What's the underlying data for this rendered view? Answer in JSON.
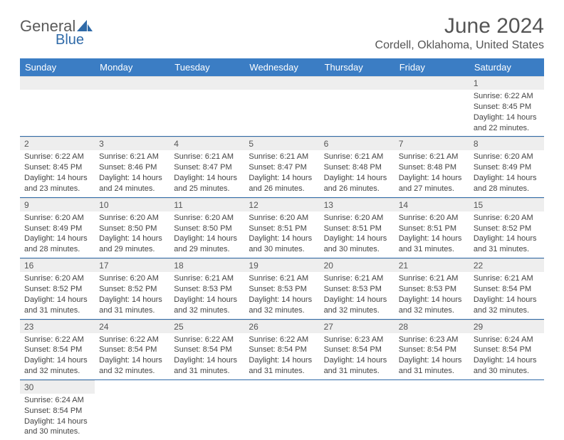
{
  "brand": {
    "name_part1": "General",
    "name_part2": "Blue",
    "text_color": "#5a5a5a",
    "accent_color": "#2f6aa8"
  },
  "title": "June 2024",
  "location": "Cordell, Oklahoma, United States",
  "header_bg": "#3b7dc4",
  "header_text_color": "#ffffff",
  "daynum_bg": "#eeeeee",
  "cell_border_color": "#2f6aa8",
  "weekdays": [
    "Sunday",
    "Monday",
    "Tuesday",
    "Wednesday",
    "Thursday",
    "Friday",
    "Saturday"
  ],
  "weeks": [
    [
      {
        "day": "",
        "lines": []
      },
      {
        "day": "",
        "lines": []
      },
      {
        "day": "",
        "lines": []
      },
      {
        "day": "",
        "lines": []
      },
      {
        "day": "",
        "lines": []
      },
      {
        "day": "",
        "lines": []
      },
      {
        "day": "1",
        "lines": [
          "Sunrise: 6:22 AM",
          "Sunset: 8:45 PM",
          "Daylight: 14 hours",
          "and 22 minutes."
        ]
      }
    ],
    [
      {
        "day": "2",
        "lines": [
          "Sunrise: 6:22 AM",
          "Sunset: 8:45 PM",
          "Daylight: 14 hours",
          "and 23 minutes."
        ]
      },
      {
        "day": "3",
        "lines": [
          "Sunrise: 6:21 AM",
          "Sunset: 8:46 PM",
          "Daylight: 14 hours",
          "and 24 minutes."
        ]
      },
      {
        "day": "4",
        "lines": [
          "Sunrise: 6:21 AM",
          "Sunset: 8:47 PM",
          "Daylight: 14 hours",
          "and 25 minutes."
        ]
      },
      {
        "day": "5",
        "lines": [
          "Sunrise: 6:21 AM",
          "Sunset: 8:47 PM",
          "Daylight: 14 hours",
          "and 26 minutes."
        ]
      },
      {
        "day": "6",
        "lines": [
          "Sunrise: 6:21 AM",
          "Sunset: 8:48 PM",
          "Daylight: 14 hours",
          "and 26 minutes."
        ]
      },
      {
        "day": "7",
        "lines": [
          "Sunrise: 6:21 AM",
          "Sunset: 8:48 PM",
          "Daylight: 14 hours",
          "and 27 minutes."
        ]
      },
      {
        "day": "8",
        "lines": [
          "Sunrise: 6:20 AM",
          "Sunset: 8:49 PM",
          "Daylight: 14 hours",
          "and 28 minutes."
        ]
      }
    ],
    [
      {
        "day": "9",
        "lines": [
          "Sunrise: 6:20 AM",
          "Sunset: 8:49 PM",
          "Daylight: 14 hours",
          "and 28 minutes."
        ]
      },
      {
        "day": "10",
        "lines": [
          "Sunrise: 6:20 AM",
          "Sunset: 8:50 PM",
          "Daylight: 14 hours",
          "and 29 minutes."
        ]
      },
      {
        "day": "11",
        "lines": [
          "Sunrise: 6:20 AM",
          "Sunset: 8:50 PM",
          "Daylight: 14 hours",
          "and 29 minutes."
        ]
      },
      {
        "day": "12",
        "lines": [
          "Sunrise: 6:20 AM",
          "Sunset: 8:51 PM",
          "Daylight: 14 hours",
          "and 30 minutes."
        ]
      },
      {
        "day": "13",
        "lines": [
          "Sunrise: 6:20 AM",
          "Sunset: 8:51 PM",
          "Daylight: 14 hours",
          "and 30 minutes."
        ]
      },
      {
        "day": "14",
        "lines": [
          "Sunrise: 6:20 AM",
          "Sunset: 8:51 PM",
          "Daylight: 14 hours",
          "and 31 minutes."
        ]
      },
      {
        "day": "15",
        "lines": [
          "Sunrise: 6:20 AM",
          "Sunset: 8:52 PM",
          "Daylight: 14 hours",
          "and 31 minutes."
        ]
      }
    ],
    [
      {
        "day": "16",
        "lines": [
          "Sunrise: 6:20 AM",
          "Sunset: 8:52 PM",
          "Daylight: 14 hours",
          "and 31 minutes."
        ]
      },
      {
        "day": "17",
        "lines": [
          "Sunrise: 6:20 AM",
          "Sunset: 8:52 PM",
          "Daylight: 14 hours",
          "and 31 minutes."
        ]
      },
      {
        "day": "18",
        "lines": [
          "Sunrise: 6:21 AM",
          "Sunset: 8:53 PM",
          "Daylight: 14 hours",
          "and 32 minutes."
        ]
      },
      {
        "day": "19",
        "lines": [
          "Sunrise: 6:21 AM",
          "Sunset: 8:53 PM",
          "Daylight: 14 hours",
          "and 32 minutes."
        ]
      },
      {
        "day": "20",
        "lines": [
          "Sunrise: 6:21 AM",
          "Sunset: 8:53 PM",
          "Daylight: 14 hours",
          "and 32 minutes."
        ]
      },
      {
        "day": "21",
        "lines": [
          "Sunrise: 6:21 AM",
          "Sunset: 8:53 PM",
          "Daylight: 14 hours",
          "and 32 minutes."
        ]
      },
      {
        "day": "22",
        "lines": [
          "Sunrise: 6:21 AM",
          "Sunset: 8:54 PM",
          "Daylight: 14 hours",
          "and 32 minutes."
        ]
      }
    ],
    [
      {
        "day": "23",
        "lines": [
          "Sunrise: 6:22 AM",
          "Sunset: 8:54 PM",
          "Daylight: 14 hours",
          "and 32 minutes."
        ]
      },
      {
        "day": "24",
        "lines": [
          "Sunrise: 6:22 AM",
          "Sunset: 8:54 PM",
          "Daylight: 14 hours",
          "and 32 minutes."
        ]
      },
      {
        "day": "25",
        "lines": [
          "Sunrise: 6:22 AM",
          "Sunset: 8:54 PM",
          "Daylight: 14 hours",
          "and 31 minutes."
        ]
      },
      {
        "day": "26",
        "lines": [
          "Sunrise: 6:22 AM",
          "Sunset: 8:54 PM",
          "Daylight: 14 hours",
          "and 31 minutes."
        ]
      },
      {
        "day": "27",
        "lines": [
          "Sunrise: 6:23 AM",
          "Sunset: 8:54 PM",
          "Daylight: 14 hours",
          "and 31 minutes."
        ]
      },
      {
        "day": "28",
        "lines": [
          "Sunrise: 6:23 AM",
          "Sunset: 8:54 PM",
          "Daylight: 14 hours",
          "and 31 minutes."
        ]
      },
      {
        "day": "29",
        "lines": [
          "Sunrise: 6:24 AM",
          "Sunset: 8:54 PM",
          "Daylight: 14 hours",
          "and 30 minutes."
        ]
      }
    ],
    [
      {
        "day": "30",
        "lines": [
          "Sunrise: 6:24 AM",
          "Sunset: 8:54 PM",
          "Daylight: 14 hours",
          "and 30 minutes."
        ]
      },
      {
        "day": "",
        "lines": []
      },
      {
        "day": "",
        "lines": []
      },
      {
        "day": "",
        "lines": []
      },
      {
        "day": "",
        "lines": []
      },
      {
        "day": "",
        "lines": []
      },
      {
        "day": "",
        "lines": []
      }
    ]
  ]
}
